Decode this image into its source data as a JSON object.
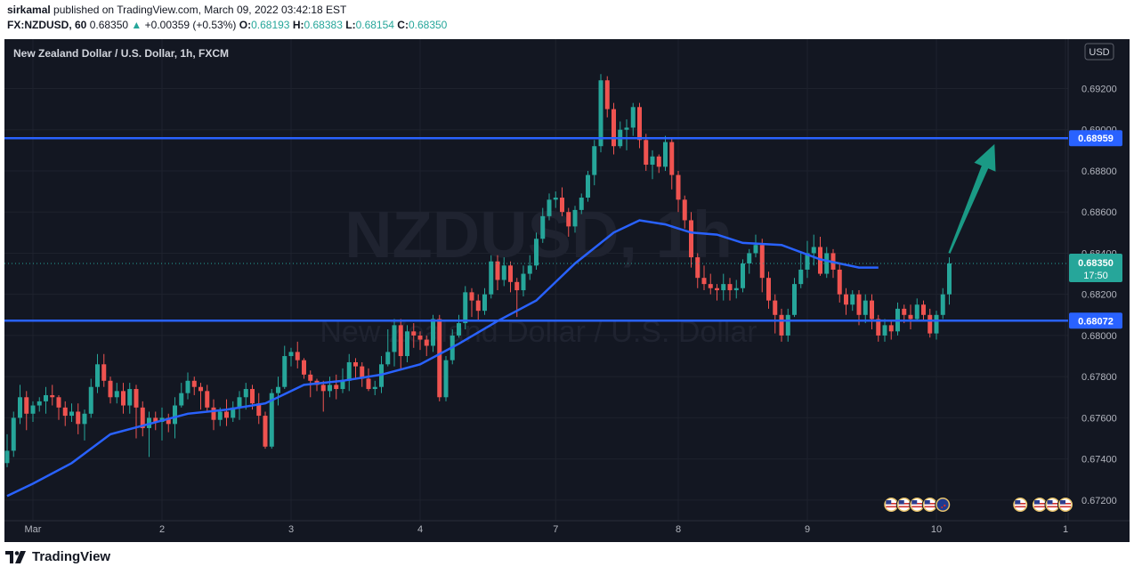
{
  "header": {
    "author": "sirkamal",
    "published_text": "published on TradingView.com, March 09, 2022 03:42:18 EST",
    "symbol": "FX:NZDUSD, 60",
    "last": "0.68350",
    "change": "+0.00359 (+0.53%)",
    "o_label": "O:",
    "o": "0.68193",
    "h_label": "H:",
    "h": "0.68383",
    "l_label": "L:",
    "l": "0.68154",
    "c_label": "C:",
    "c": "0.68350",
    "up_glyph": "▲"
  },
  "chart_title": "New Zealand Dollar / U.S. Dollar, 1h, FXCM",
  "watermark": {
    "symbol": "NZDUSD, 1h",
    "name": "New Zealand Dollar / U.S. Dollar"
  },
  "currency": "USD",
  "footer": {
    "brand": "TradingView",
    "logo": "tradingview-logo"
  },
  "colors": {
    "background": "#131722",
    "up": "#26a69a",
    "down": "#ef5350",
    "ma": "#2962ff",
    "level": "#2962ff",
    "arrow": "#1a9a85"
  },
  "chart_data": {
    "type": "candlestick",
    "y_range": [
      0.671,
      0.6944
    ],
    "y_ticks": [
      "0.69200",
      "0.69000",
      "0.68800",
      "0.68600",
      "0.68400",
      "0.68200",
      "0.68000",
      "0.67800",
      "0.67600",
      "0.67400",
      "0.67200"
    ],
    "x_labels": [
      {
        "label": "Mar",
        "bar": 4
      },
      {
        "label": "2",
        "bar": 24
      },
      {
        "label": "3",
        "bar": 44
      },
      {
        "label": "4",
        "bar": 64
      },
      {
        "label": "7",
        "bar": 85
      },
      {
        "label": "8",
        "bar": 104
      },
      {
        "label": "9",
        "bar": 124
      },
      {
        "label": "10",
        "bar": 144
      },
      {
        "label": "1",
        "bar": 164
      }
    ],
    "bars_total": 165,
    "resistance": {
      "value": 0.68959,
      "label": "0.68959"
    },
    "support": {
      "value": 0.68072,
      "label": "0.68072"
    },
    "last_price": {
      "value": 0.6835,
      "label": "0.68350",
      "countdown": "17:50"
    },
    "arrow": {
      "from": {
        "bar": 146,
        "price": 0.684
      },
      "to": {
        "bar": 153,
        "price": 0.6893
      }
    },
    "event_icons": [
      {
        "bar": 137,
        "flag": "us"
      },
      {
        "bar": 139,
        "flag": "us"
      },
      {
        "bar": 141,
        "flag": "us"
      },
      {
        "bar": 143,
        "flag": "us"
      },
      {
        "bar": 145,
        "flag": "nz"
      },
      {
        "bar": 157,
        "flag": "us"
      },
      {
        "bar": 160,
        "flag": "us"
      },
      {
        "bar": 162,
        "flag": "us"
      },
      {
        "bar": 164,
        "flag": "us"
      }
    ],
    "ma_name": "",
    "ma": [
      [
        0,
        0.6722
      ],
      [
        4,
        0.6728
      ],
      [
        10,
        0.6738
      ],
      [
        16,
        0.6752
      ],
      [
        22,
        0.6757
      ],
      [
        28,
        0.6762
      ],
      [
        34,
        0.6764
      ],
      [
        40,
        0.6767
      ],
      [
        46,
        0.6776
      ],
      [
        52,
        0.6778
      ],
      [
        58,
        0.6781
      ],
      [
        64,
        0.6786
      ],
      [
        70,
        0.6796
      ],
      [
        76,
        0.6807
      ],
      [
        82,
        0.6817
      ],
      [
        88,
        0.6835
      ],
      [
        94,
        0.685
      ],
      [
        98,
        0.6856
      ],
      [
        102,
        0.6854
      ],
      [
        106,
        0.685
      ],
      [
        110,
        0.6849
      ],
      [
        114,
        0.6845
      ],
      [
        120,
        0.6844
      ],
      [
        126,
        0.6837
      ],
      [
        132,
        0.6833
      ],
      [
        135,
        0.6833
      ]
    ],
    "candles": [
      [
        0.6738,
        0.6744,
        0.6736,
        0.6752
      ],
      [
        0.6744,
        0.676,
        0.6741,
        0.6763
      ],
      [
        0.676,
        0.677,
        0.6757,
        0.6776
      ],
      [
        0.677,
        0.6762,
        0.6754,
        0.6773
      ],
      [
        0.6762,
        0.6766,
        0.6758,
        0.6768
      ],
      [
        0.6766,
        0.6768,
        0.6763,
        0.677
      ],
      [
        0.6768,
        0.6771,
        0.6762,
        0.6775
      ],
      [
        0.6771,
        0.677,
        0.6766,
        0.6776
      ],
      [
        0.677,
        0.6765,
        0.6759,
        0.6771
      ],
      [
        0.6765,
        0.6761,
        0.6756,
        0.6768
      ],
      [
        0.6761,
        0.6763,
        0.6758,
        0.6767
      ],
      [
        0.6763,
        0.6757,
        0.6752,
        0.6767
      ],
      [
        0.6757,
        0.6762,
        0.6749,
        0.6764
      ],
      [
        0.6762,
        0.6775,
        0.676,
        0.6779
      ],
      [
        0.6775,
        0.6786,
        0.6772,
        0.6791
      ],
      [
        0.6786,
        0.6778,
        0.6775,
        0.6791
      ],
      [
        0.6778,
        0.677,
        0.6767,
        0.678
      ],
      [
        0.677,
        0.6773,
        0.6767,
        0.6777
      ],
      [
        0.6773,
        0.6766,
        0.6762,
        0.6777
      ],
      [
        0.6766,
        0.6774,
        0.6762,
        0.6777
      ],
      [
        0.6774,
        0.6765,
        0.675,
        0.6776
      ],
      [
        0.6765,
        0.6755,
        0.6751,
        0.6768
      ],
      [
        0.6755,
        0.676,
        0.6741,
        0.6763
      ],
      [
        0.676,
        0.6758,
        0.6754,
        0.6763
      ],
      [
        0.6758,
        0.676,
        0.6749,
        0.6765
      ],
      [
        0.676,
        0.6757,
        0.6753,
        0.6762
      ],
      [
        0.6757,
        0.6766,
        0.675,
        0.677
      ],
      [
        0.6766,
        0.6772,
        0.6765,
        0.6777
      ],
      [
        0.6772,
        0.6778,
        0.6769,
        0.6782
      ],
      [
        0.6778,
        0.6775,
        0.6771,
        0.678
      ],
      [
        0.6775,
        0.6773,
        0.6764,
        0.6777
      ],
      [
        0.6773,
        0.6765,
        0.6763,
        0.6776
      ],
      [
        0.6765,
        0.6759,
        0.6754,
        0.6769
      ],
      [
        0.6759,
        0.6763,
        0.6756,
        0.6765
      ],
      [
        0.6763,
        0.676,
        0.6756,
        0.6769
      ],
      [
        0.676,
        0.6765,
        0.6758,
        0.6768
      ],
      [
        0.6765,
        0.677,
        0.6759,
        0.6773
      ],
      [
        0.677,
        0.6774,
        0.6764,
        0.6777
      ],
      [
        0.6774,
        0.6767,
        0.6764,
        0.6776
      ],
      [
        0.6767,
        0.6761,
        0.6757,
        0.6772
      ],
      [
        0.6761,
        0.6746,
        0.6745,
        0.6763
      ],
      [
        0.6746,
        0.6772,
        0.6745,
        0.6774
      ],
      [
        0.6772,
        0.6775,
        0.6766,
        0.678
      ],
      [
        0.6775,
        0.679,
        0.6774,
        0.6795
      ],
      [
        0.679,
        0.6792,
        0.6785,
        0.6794
      ],
      [
        0.6792,
        0.6788,
        0.6784,
        0.6797
      ],
      [
        0.6788,
        0.6781,
        0.6779,
        0.6789
      ],
      [
        0.6781,
        0.6778,
        0.677,
        0.6783
      ],
      [
        0.6778,
        0.6776,
        0.6773,
        0.6779
      ],
      [
        0.6776,
        0.6773,
        0.6763,
        0.6778
      ],
      [
        0.6773,
        0.6776,
        0.677,
        0.678
      ],
      [
        0.6776,
        0.6774,
        0.6769,
        0.6781
      ],
      [
        0.6774,
        0.6778,
        0.6772,
        0.6784
      ],
      [
        0.6778,
        0.6787,
        0.6773,
        0.6791
      ],
      [
        0.6787,
        0.6785,
        0.6779,
        0.6789
      ],
      [
        0.6785,
        0.6779,
        0.6775,
        0.6787
      ],
      [
        0.6779,
        0.6774,
        0.6773,
        0.6784
      ],
      [
        0.6774,
        0.6775,
        0.6771,
        0.6778
      ],
      [
        0.6775,
        0.6786,
        0.6772,
        0.679
      ],
      [
        0.6786,
        0.6792,
        0.6785,
        0.6803
      ],
      [
        0.6792,
        0.6805,
        0.6785,
        0.6808
      ],
      [
        0.6805,
        0.679,
        0.6783,
        0.6808
      ],
      [
        0.679,
        0.6802,
        0.6787,
        0.6805
      ],
      [
        0.6802,
        0.68,
        0.6794,
        0.6806
      ],
      [
        0.68,
        0.6798,
        0.6793,
        0.6802
      ],
      [
        0.6798,
        0.6795,
        0.679,
        0.68
      ],
      [
        0.6795,
        0.6808,
        0.6792,
        0.681
      ],
      [
        0.6808,
        0.677,
        0.6768,
        0.681
      ],
      [
        0.677,
        0.6788,
        0.6768,
        0.679
      ],
      [
        0.6788,
        0.68,
        0.6786,
        0.6803
      ],
      [
        0.68,
        0.6806,
        0.6799,
        0.681
      ],
      [
        0.6806,
        0.6821,
        0.6803,
        0.6824
      ],
      [
        0.6821,
        0.6817,
        0.6809,
        0.6823
      ],
      [
        0.6817,
        0.6812,
        0.6807,
        0.682
      ],
      [
        0.6812,
        0.682,
        0.681,
        0.6823
      ],
      [
        0.682,
        0.6836,
        0.6818,
        0.6839
      ],
      [
        0.6836,
        0.6827,
        0.6822,
        0.6839
      ],
      [
        0.6827,
        0.6834,
        0.6824,
        0.6838
      ],
      [
        0.6834,
        0.6826,
        0.6821,
        0.6836
      ],
      [
        0.6826,
        0.6822,
        0.6809,
        0.6828
      ],
      [
        0.6822,
        0.683,
        0.6819,
        0.6834
      ],
      [
        0.683,
        0.6834,
        0.6827,
        0.6839
      ],
      [
        0.6834,
        0.6847,
        0.6832,
        0.685
      ],
      [
        0.6847,
        0.6858,
        0.6845,
        0.6862
      ],
      [
        0.6858,
        0.6866,
        0.6856,
        0.6869
      ],
      [
        0.6866,
        0.6867,
        0.6862,
        0.687
      ],
      [
        0.6867,
        0.686,
        0.6858,
        0.6872
      ],
      [
        0.686,
        0.6853,
        0.6848,
        0.6862
      ],
      [
        0.6853,
        0.6861,
        0.685,
        0.6863
      ],
      [
        0.6861,
        0.6867,
        0.6859,
        0.6869
      ],
      [
        0.6867,
        0.6878,
        0.6865,
        0.688
      ],
      [
        0.6878,
        0.6892,
        0.6873,
        0.6895
      ],
      [
        0.6892,
        0.6924,
        0.6889,
        0.6927
      ],
      [
        0.6924,
        0.691,
        0.6906,
        0.6926
      ],
      [
        0.691,
        0.6892,
        0.6888,
        0.6913
      ],
      [
        0.6892,
        0.69,
        0.6891,
        0.6904
      ],
      [
        0.69,
        0.6901,
        0.689,
        0.6905
      ],
      [
        0.6901,
        0.6911,
        0.6897,
        0.6913
      ],
      [
        0.6911,
        0.6895,
        0.6891,
        0.6913
      ],
      [
        0.6895,
        0.6883,
        0.688,
        0.6898
      ],
      [
        0.6883,
        0.6887,
        0.6876,
        0.689
      ],
      [
        0.6887,
        0.6882,
        0.6879,
        0.6888
      ],
      [
        0.6882,
        0.6894,
        0.688,
        0.6897
      ],
      [
        0.6894,
        0.6878,
        0.6871,
        0.6896
      ],
      [
        0.6878,
        0.6866,
        0.686,
        0.688
      ],
      [
        0.6866,
        0.6856,
        0.6852,
        0.6868
      ],
      [
        0.6856,
        0.6838,
        0.6833,
        0.686
      ],
      [
        0.6838,
        0.6828,
        0.6823,
        0.684
      ],
      [
        0.6828,
        0.6825,
        0.6822,
        0.6834
      ],
      [
        0.6825,
        0.6823,
        0.682,
        0.683
      ],
      [
        0.6823,
        0.6822,
        0.6817,
        0.6825
      ],
      [
        0.6822,
        0.6825,
        0.6817,
        0.683
      ],
      [
        0.6825,
        0.6822,
        0.6817,
        0.6828
      ],
      [
        0.6822,
        0.6823,
        0.6818,
        0.6827
      ],
      [
        0.6823,
        0.6835,
        0.6821,
        0.6837
      ],
      [
        0.6835,
        0.684,
        0.683,
        0.6842
      ],
      [
        0.684,
        0.6844,
        0.6838,
        0.6849
      ],
      [
        0.6844,
        0.6828,
        0.6821,
        0.6847
      ],
      [
        0.6828,
        0.6817,
        0.6813,
        0.6831
      ],
      [
        0.6817,
        0.681,
        0.6801,
        0.682
      ],
      [
        0.681,
        0.68,
        0.6797,
        0.6813
      ],
      [
        0.68,
        0.681,
        0.6797,
        0.6813
      ],
      [
        0.681,
        0.6825,
        0.6809,
        0.6828
      ],
      [
        0.6825,
        0.6832,
        0.6823,
        0.684
      ],
      [
        0.6832,
        0.684,
        0.6828,
        0.6846
      ],
      [
        0.684,
        0.6843,
        0.6834,
        0.6849
      ],
      [
        0.6843,
        0.683,
        0.6829,
        0.6848
      ],
      [
        0.683,
        0.684,
        0.6828,
        0.6843
      ],
      [
        0.684,
        0.6832,
        0.6828,
        0.6842
      ],
      [
        0.6832,
        0.682,
        0.6816,
        0.6835
      ],
      [
        0.682,
        0.6815,
        0.681,
        0.6823
      ],
      [
        0.6815,
        0.682,
        0.6812,
        0.6822
      ],
      [
        0.682,
        0.681,
        0.6805,
        0.6822
      ],
      [
        0.681,
        0.6817,
        0.6806,
        0.682
      ],
      [
        0.6817,
        0.6808,
        0.6803,
        0.682
      ],
      [
        0.6808,
        0.68,
        0.6797,
        0.681
      ],
      [
        0.68,
        0.6805,
        0.6797,
        0.6808
      ],
      [
        0.6805,
        0.6802,
        0.6798,
        0.6807
      ],
      [
        0.6802,
        0.6813,
        0.68,
        0.6816
      ],
      [
        0.6813,
        0.681,
        0.6806,
        0.6815
      ],
      [
        0.681,
        0.6808,
        0.6803,
        0.6815
      ],
      [
        0.6808,
        0.6815,
        0.6807,
        0.6818
      ],
      [
        0.6815,
        0.681,
        0.6807,
        0.6817
      ],
      [
        0.681,
        0.6801,
        0.6799,
        0.6813
      ],
      [
        0.6801,
        0.681,
        0.6798,
        0.6812
      ],
      [
        0.681,
        0.682,
        0.6808,
        0.6823
      ],
      [
        0.682,
        0.6835,
        0.6815,
        0.6838
      ]
    ]
  }
}
